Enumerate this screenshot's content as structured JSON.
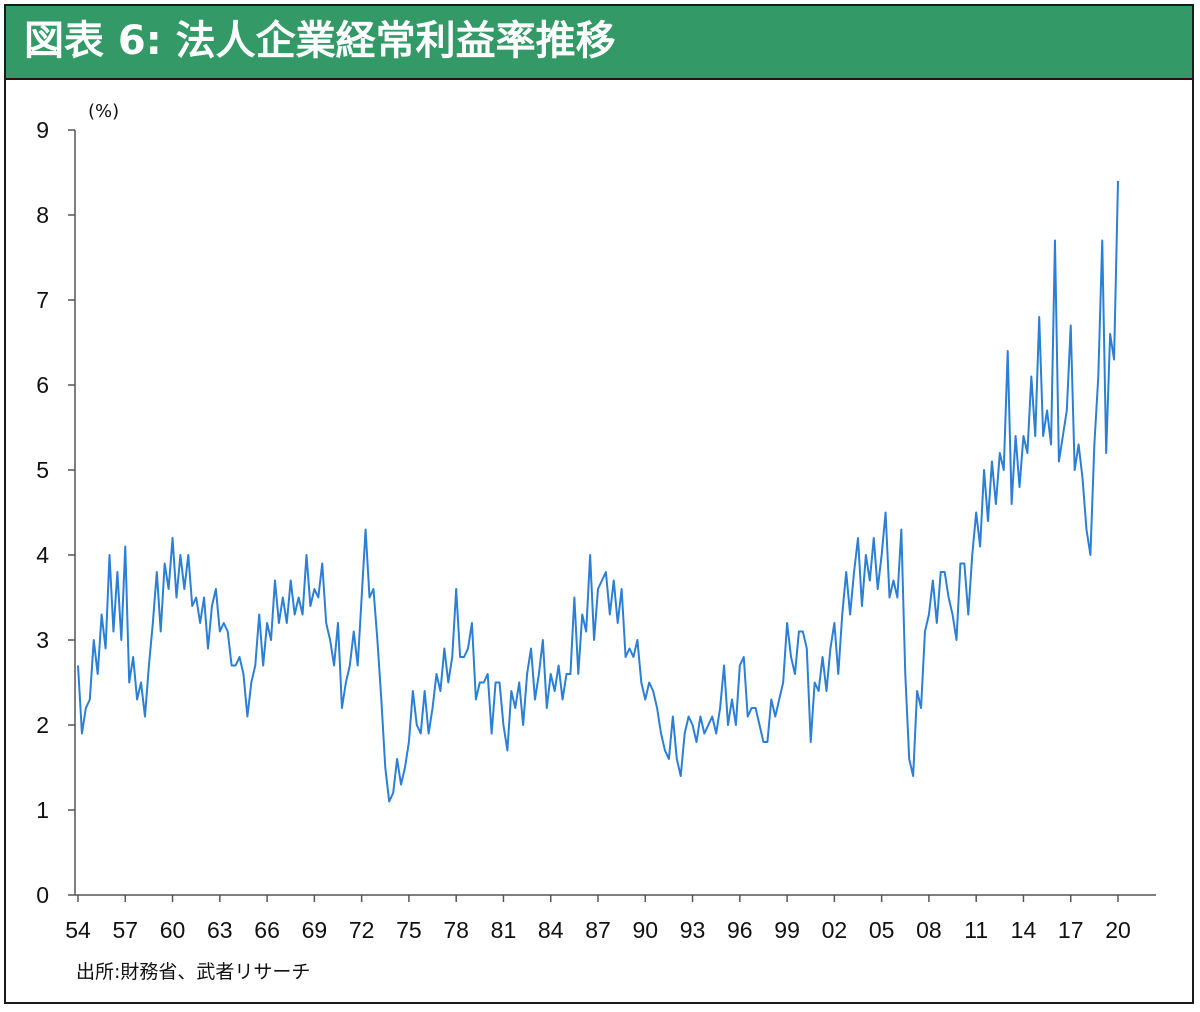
{
  "header": {
    "title": "図表 6: 法人企業経常利益率推移"
  },
  "chart_data": {
    "type": "line",
    "title": "図表 6: 法人企業経常利益率推移",
    "ylabel": "(%)",
    "xlabel": "",
    "source": "出所:財務省、武者リサーチ",
    "ylim": [
      0,
      9
    ],
    "yticks": [
      "0",
      "1",
      "2",
      "3",
      "4",
      "5",
      "6",
      "7",
      "8",
      "9"
    ],
    "xticks": [
      "54",
      "57",
      "60",
      "63",
      "66",
      "69",
      "72",
      "75",
      "78",
      "81",
      "84",
      "87",
      "90",
      "93",
      "96",
      "99",
      "02",
      "05",
      "08",
      "11",
      "14",
      "17",
      "20"
    ],
    "grid": false,
    "legend": "none",
    "line_color": "#2b7fd4",
    "series": [
      {
        "x_start": 1954.0,
        "x_step": 0.25,
        "values": [
          2.7,
          1.9,
          2.2,
          2.3,
          3.0,
          2.6,
          3.3,
          2.9,
          4.0,
          3.1,
          3.8,
          3.0,
          4.1,
          2.5,
          2.8,
          2.3,
          2.5,
          2.1,
          2.7,
          3.2,
          3.8,
          3.1,
          3.9,
          3.6,
          4.2,
          3.5,
          4.0,
          3.6,
          4.0,
          3.4,
          3.5,
          3.2,
          3.5,
          2.9,
          3.4,
          3.6,
          3.1,
          3.2,
          3.1,
          2.7,
          2.7,
          2.8,
          2.6,
          2.1,
          2.5,
          2.7,
          3.3,
          2.7,
          3.2,
          3.0,
          3.7,
          3.2,
          3.5,
          3.2,
          3.7,
          3.3,
          3.5,
          3.3,
          4.0,
          3.4,
          3.6,
          3.5,
          3.9,
          3.2,
          3.0,
          2.7,
          3.2,
          2.2,
          2.5,
          2.7,
          3.1,
          2.7,
          3.5,
          4.3,
          3.5,
          3.6,
          3.0,
          2.3,
          1.5,
          1.1,
          1.2,
          1.6,
          1.3,
          1.5,
          1.8,
          2.4,
          2.0,
          1.9,
          2.4,
          1.9,
          2.2,
          2.6,
          2.4,
          2.9,
          2.5,
          2.8,
          3.6,
          2.8,
          2.8,
          2.9,
          3.2,
          2.3,
          2.5,
          2.5,
          2.6,
          1.9,
          2.5,
          2.5,
          2.0,
          1.7,
          2.4,
          2.2,
          2.5,
          2.0,
          2.6,
          2.9,
          2.3,
          2.6,
          3.0,
          2.2,
          2.6,
          2.4,
          2.7,
          2.3,
          2.6,
          2.6,
          3.5,
          2.6,
          3.3,
          3.1,
          4.0,
          3.0,
          3.6,
          3.7,
          3.8,
          3.3,
          3.7,
          3.2,
          3.6,
          2.8,
          2.9,
          2.8,
          3.0,
          2.5,
          2.3,
          2.5,
          2.4,
          2.2,
          1.9,
          1.7,
          1.6,
          2.1,
          1.6,
          1.4,
          1.9,
          2.1,
          2.0,
          1.8,
          2.1,
          1.9,
          2.0,
          2.1,
          1.9,
          2.2,
          2.7,
          2.0,
          2.3,
          2.0,
          2.7,
          2.8,
          2.1,
          2.2,
          2.2,
          2.0,
          1.8,
          1.8,
          2.3,
          2.1,
          2.3,
          2.5,
          3.2,
          2.8,
          2.6,
          3.1,
          3.1,
          2.9,
          1.8,
          2.5,
          2.4,
          2.8,
          2.4,
          2.9,
          3.2,
          2.6,
          3.3,
          3.8,
          3.3,
          3.8,
          4.2,
          3.4,
          4.0,
          3.7,
          4.2,
          3.6,
          4.0,
          4.5,
          3.5,
          3.7,
          3.5,
          4.3,
          2.6,
          1.6,
          1.4,
          2.4,
          2.2,
          3.1,
          3.3,
          3.7,
          3.2,
          3.8,
          3.8,
          3.5,
          3.3,
          3.0,
          3.9,
          3.9,
          3.3,
          4.0,
          4.5,
          4.1,
          5.0,
          4.4,
          5.1,
          4.6,
          5.2,
          5.0,
          6.4,
          4.6,
          5.4,
          4.8,
          5.4,
          5.2,
          6.1,
          5.4,
          6.8,
          5.4,
          5.7,
          5.3,
          7.7,
          5.1,
          5.4,
          5.7,
          6.7,
          5.0,
          5.3,
          4.9,
          4.3,
          4.0,
          5.3,
          6.1,
          7.7,
          5.2,
          6.6,
          6.3,
          8.4
        ]
      }
    ]
  }
}
